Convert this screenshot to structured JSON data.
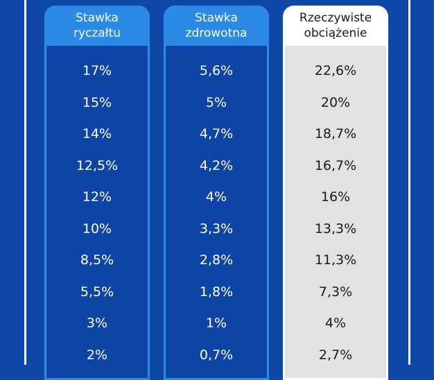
{
  "columns": [
    {
      "header": [
        "Stawka",
        "ryczałtu"
      ],
      "values": [
        "17%",
        "15%",
        "14%",
        "12,5%",
        "12%",
        "10%",
        "8,5%",
        "5,5%",
        "3%",
        "2%"
      ]
    },
    {
      "header": [
        "Stawka",
        "zdrowotna"
      ],
      "values": [
        "5,6%",
        "5%",
        "4,7%",
        "4,2%",
        "4%",
        "3,3%",
        "2,8%",
        "1,8%",
        "1%",
        "0,7%"
      ]
    },
    {
      "header": [
        "Rzeczywiste",
        "obciążenie"
      ],
      "values": [
        "22,6%",
        "20%",
        "18,7%",
        "16,7%",
        "16%",
        "13,3%",
        "11,3%",
        "7,3%",
        "4%",
        "2,7%"
      ]
    }
  ],
  "colors": {
    "background": "#0f47a6",
    "accent": "#2a8ae6",
    "highlight_body": "#e2e2e2"
  }
}
